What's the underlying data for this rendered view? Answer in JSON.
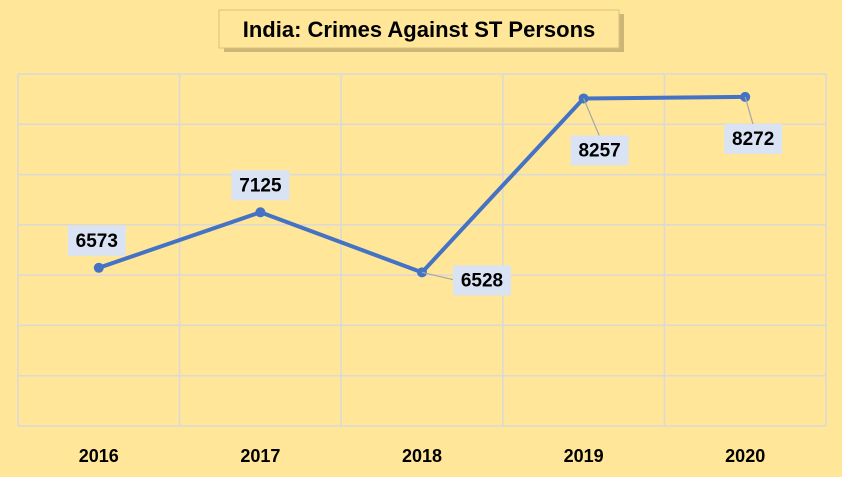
{
  "chart_data": {
    "type": "line",
    "title": "India: Crimes Against ST Persons",
    "categories": [
      "2016",
      "2017",
      "2018",
      "2019",
      "2020"
    ],
    "series": [
      {
        "name": "Crimes Against ST Persons",
        "color": "#4472c4",
        "values": [
          6573,
          7125,
          6528,
          8257,
          8272
        ]
      }
    ],
    "ylim": [
      5000,
      8500
    ],
    "yticks": [
      5000,
      5500,
      6000,
      6500,
      7000,
      7500,
      8000,
      8500
    ],
    "grid": true
  }
}
